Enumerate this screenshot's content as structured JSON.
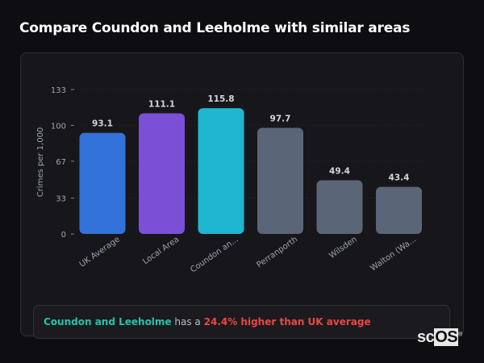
{
  "title": "Compare Coundon and Leeholme with similar areas",
  "chart_data": {
    "type": "bar",
    "ylabel": "Crimes per 1,000",
    "ylim": [
      0,
      133
    ],
    "yticks": [
      0,
      33,
      67,
      100,
      133
    ],
    "grid": true,
    "categories": [
      "UK Average",
      "Local Area",
      "Coundon an...",
      "Perranporth",
      "Wilsden",
      "Walton (Wa..."
    ],
    "values": [
      93.1,
      111.1,
      115.8,
      97.7,
      49.4,
      43.4
    ],
    "colors": [
      "#3372d9",
      "#7b4fd6",
      "#1fb6d0",
      "#5a6577",
      "#5a6577",
      "#5a6577"
    ]
  },
  "summary": {
    "area": "Coundon and Leeholme",
    "connector": "has a",
    "comparison": "24.4% higher than UK average"
  },
  "watermark": {
    "prefix": "sc",
    "boxed": "OS",
    "mark": "®"
  }
}
